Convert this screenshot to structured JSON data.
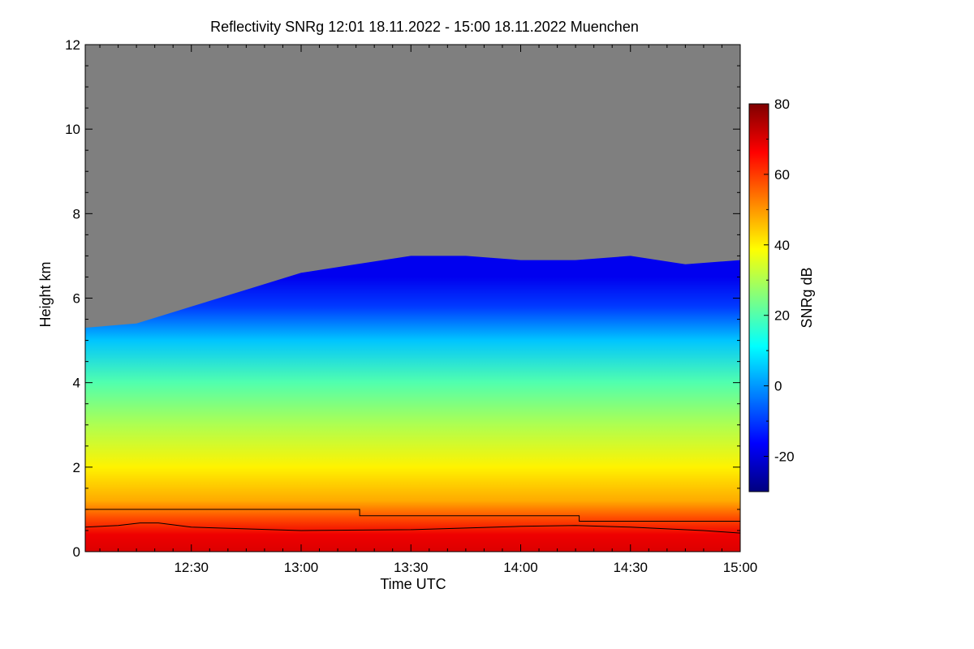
{
  "chart_data": {
    "type": "heatmap",
    "title": "Reflectivity SNRg   12:01 18.11.2022 - 15:00 18.11.2022 Muenchen",
    "xlabel": "Time UTC",
    "ylabel": "Height km",
    "colorbar_label": "SNRg dB",
    "xlim": [
      "12:01",
      "15:00"
    ],
    "ylim": [
      0,
      12
    ],
    "clim": [
      -30,
      80
    ],
    "x_ticks": [
      "12:30",
      "13:00",
      "13:30",
      "14:00",
      "14:30",
      "15:00"
    ],
    "y_ticks": [
      "0",
      "2",
      "4",
      "6",
      "8",
      "10",
      "12"
    ],
    "colorbar_ticks": [
      "-20",
      "0",
      "20",
      "40",
      "60",
      "80"
    ],
    "no_signal_color": "#7f7f7f",
    "colormap": [
      "#00007f",
      "#0000ff",
      "#0080ff",
      "#00ffff",
      "#80ff80",
      "#ffff00",
      "#ff8000",
      "#ff0000",
      "#7f0000"
    ],
    "cloud_top_km": [
      {
        "time": "12:01",
        "height": 5.3
      },
      {
        "time": "12:15",
        "height": 5.4
      },
      {
        "time": "12:30",
        "height": 5.8
      },
      {
        "time": "12:45",
        "height": 6.2
      },
      {
        "time": "13:00",
        "height": 6.6
      },
      {
        "time": "13:15",
        "height": 6.8
      },
      {
        "time": "13:30",
        "height": 7.0
      },
      {
        "time": "13:45",
        "height": 7.0
      },
      {
        "time": "14:00",
        "height": 6.9
      },
      {
        "time": "14:15",
        "height": 6.9
      },
      {
        "time": "14:30",
        "height": 7.0
      },
      {
        "time": "14:45",
        "height": 6.8
      },
      {
        "time": "15:00",
        "height": 6.9
      }
    ],
    "reflectivity_profile_db": [
      {
        "height": 0.0,
        "value": 70
      },
      {
        "height": 0.4,
        "value": 68
      },
      {
        "height": 0.8,
        "value": 58
      },
      {
        "height": 1.2,
        "value": 48
      },
      {
        "height": 2.0,
        "value": 40
      },
      {
        "height": 3.0,
        "value": 30
      },
      {
        "height": 4.0,
        "value": 20
      },
      {
        "height": 5.0,
        "value": 5
      },
      {
        "height": 5.8,
        "value": -10
      },
      {
        "height": 6.5,
        "value": -18
      }
    ],
    "series": [
      {
        "points": [
          {
            "time": "12:01",
            "height": 1.0
          },
          {
            "time": "13:16",
            "height": 1.0
          },
          {
            "time": "13:16",
            "height": 0.85
          },
          {
            "time": "14:16",
            "height": 0.85
          },
          {
            "time": "14:16",
            "height": 0.72
          },
          {
            "time": "15:00",
            "height": 0.72
          }
        ]
      },
      {
        "points": [
          {
            "time": "12:01",
            "height": 0.58
          },
          {
            "time": "12:10",
            "height": 0.62
          },
          {
            "time": "12:16",
            "height": 0.68
          },
          {
            "time": "12:21",
            "height": 0.68
          },
          {
            "time": "12:30",
            "height": 0.58
          },
          {
            "time": "13:00",
            "height": 0.5
          },
          {
            "time": "13:30",
            "height": 0.52
          },
          {
            "time": "14:00",
            "height": 0.6
          },
          {
            "time": "14:15",
            "height": 0.62
          },
          {
            "time": "14:30",
            "height": 0.58
          },
          {
            "time": "14:50",
            "height": 0.5
          },
          {
            "time": "15:00",
            "height": 0.44
          }
        ]
      }
    ]
  }
}
